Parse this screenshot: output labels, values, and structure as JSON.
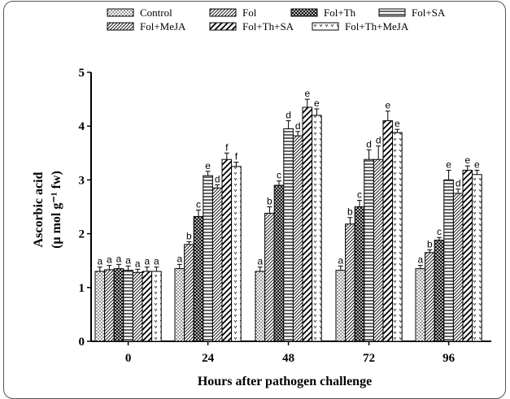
{
  "chart_data": {
    "type": "bar",
    "xlabel": "Hours after pathogen challenge",
    "ylabel_line1": "Ascorbic acid",
    "ylabel_line2": "(μ mol g⁻¹ fw)",
    "ylim": [
      0,
      5
    ],
    "yticks": [
      "0",
      "1",
      "2",
      "3",
      "4",
      "5"
    ],
    "categories": [
      "0",
      "24",
      "48",
      "72",
      "96"
    ],
    "legend_position": "top",
    "series": [
      {
        "name": "Control",
        "pattern": "dots",
        "values": [
          1.3,
          1.35,
          1.3,
          1.32,
          1.35
        ],
        "errors": [
          0.08,
          0.08,
          0.08,
          0.08,
          0.06
        ],
        "letters": [
          "a",
          "a",
          "a",
          "a",
          "a"
        ]
      },
      {
        "name": "Fol",
        "pattern": "diag",
        "values": [
          1.33,
          1.8,
          2.38,
          2.18,
          1.65
        ],
        "errors": [
          0.08,
          0.05,
          0.12,
          0.12,
          0.05
        ],
        "letters": [
          "a",
          "b",
          "b",
          "b",
          "b"
        ]
      },
      {
        "name": "Fol+Th",
        "pattern": "cross",
        "values": [
          1.35,
          2.32,
          2.9,
          2.5,
          1.88
        ],
        "errors": [
          0.08,
          0.12,
          0.08,
          0.12,
          0.05
        ],
        "letters": [
          "a",
          "c",
          "c",
          "c",
          "c"
        ]
      },
      {
        "name": "Fol+SA",
        "pattern": "hlines",
        "values": [
          1.32,
          3.08,
          3.95,
          3.38,
          3.0
        ],
        "errors": [
          0.08,
          0.08,
          0.15,
          0.18,
          0.18
        ],
        "letters": [
          "a",
          "e",
          "d",
          "d",
          "e"
        ]
      },
      {
        "name": "Fol+MeJA",
        "pattern": "diag",
        "values": [
          1.28,
          2.85,
          3.82,
          3.38,
          2.75
        ],
        "errors": [
          0.06,
          0.06,
          0.08,
          0.25,
          0.08
        ],
        "letters": [
          "a",
          "d",
          "d",
          "d",
          "d"
        ]
      },
      {
        "name": "Fol+Th+SA",
        "pattern": "bigdiag",
        "values": [
          1.3,
          3.38,
          4.35,
          4.1,
          3.18
        ],
        "errors": [
          0.08,
          0.12,
          0.15,
          0.18,
          0.08
        ],
        "letters": [
          "a",
          "f",
          "e",
          "e",
          "e"
        ]
      },
      {
        "name": "Fol+Th+MeJA",
        "pattern": "vees",
        "values": [
          1.3,
          3.25,
          4.2,
          3.88,
          3.1
        ],
        "errors": [
          0.08,
          0.08,
          0.12,
          0.06,
          0.08
        ],
        "letters": [
          "a",
          "f",
          "e",
          "e",
          "e"
        ]
      }
    ]
  }
}
